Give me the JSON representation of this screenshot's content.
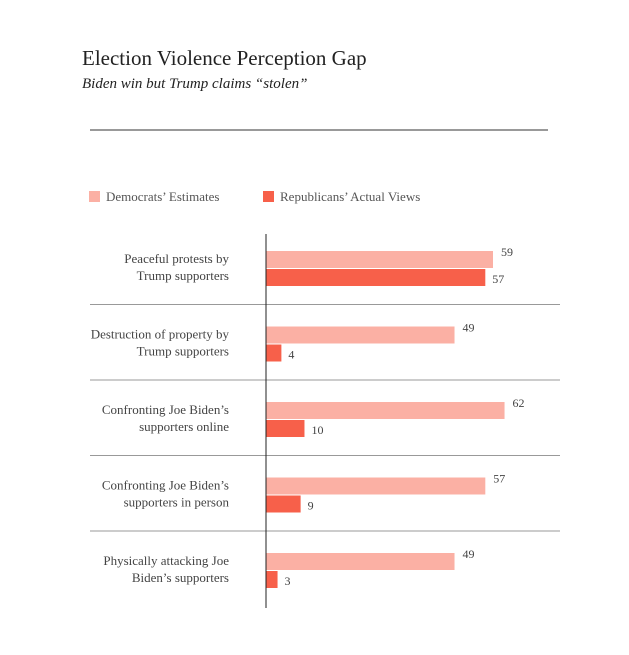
{
  "chart_data": {
    "type": "bar",
    "orientation": "horizontal",
    "title": "Election Violence Perception Gap",
    "subtitle": "Biden win but Trump claims “stolen”",
    "legend_placement": "top-left",
    "grid": false,
    "xlim": [
      0,
      70
    ],
    "categories": [
      [
        "Peaceful protests by",
        "Trump supporters"
      ],
      [
        "Destruction of property  by",
        "Trump supporters"
      ],
      [
        "Confronting Joe Biden’s",
        "supporters online"
      ],
      [
        "Confronting Joe Biden’s",
        "supporters in person"
      ],
      [
        "Physically attacking Joe",
        "Biden’s supporters"
      ]
    ],
    "series": [
      {
        "name": "Democrats’ Estimates",
        "color": "#fbb0a4",
        "values": [
          59,
          49,
          62,
          57,
          49
        ]
      },
      {
        "name": "Republicans’ Actual Views",
        "color": "#f7604a",
        "values": [
          57,
          4,
          10,
          9,
          3
        ]
      }
    ]
  }
}
